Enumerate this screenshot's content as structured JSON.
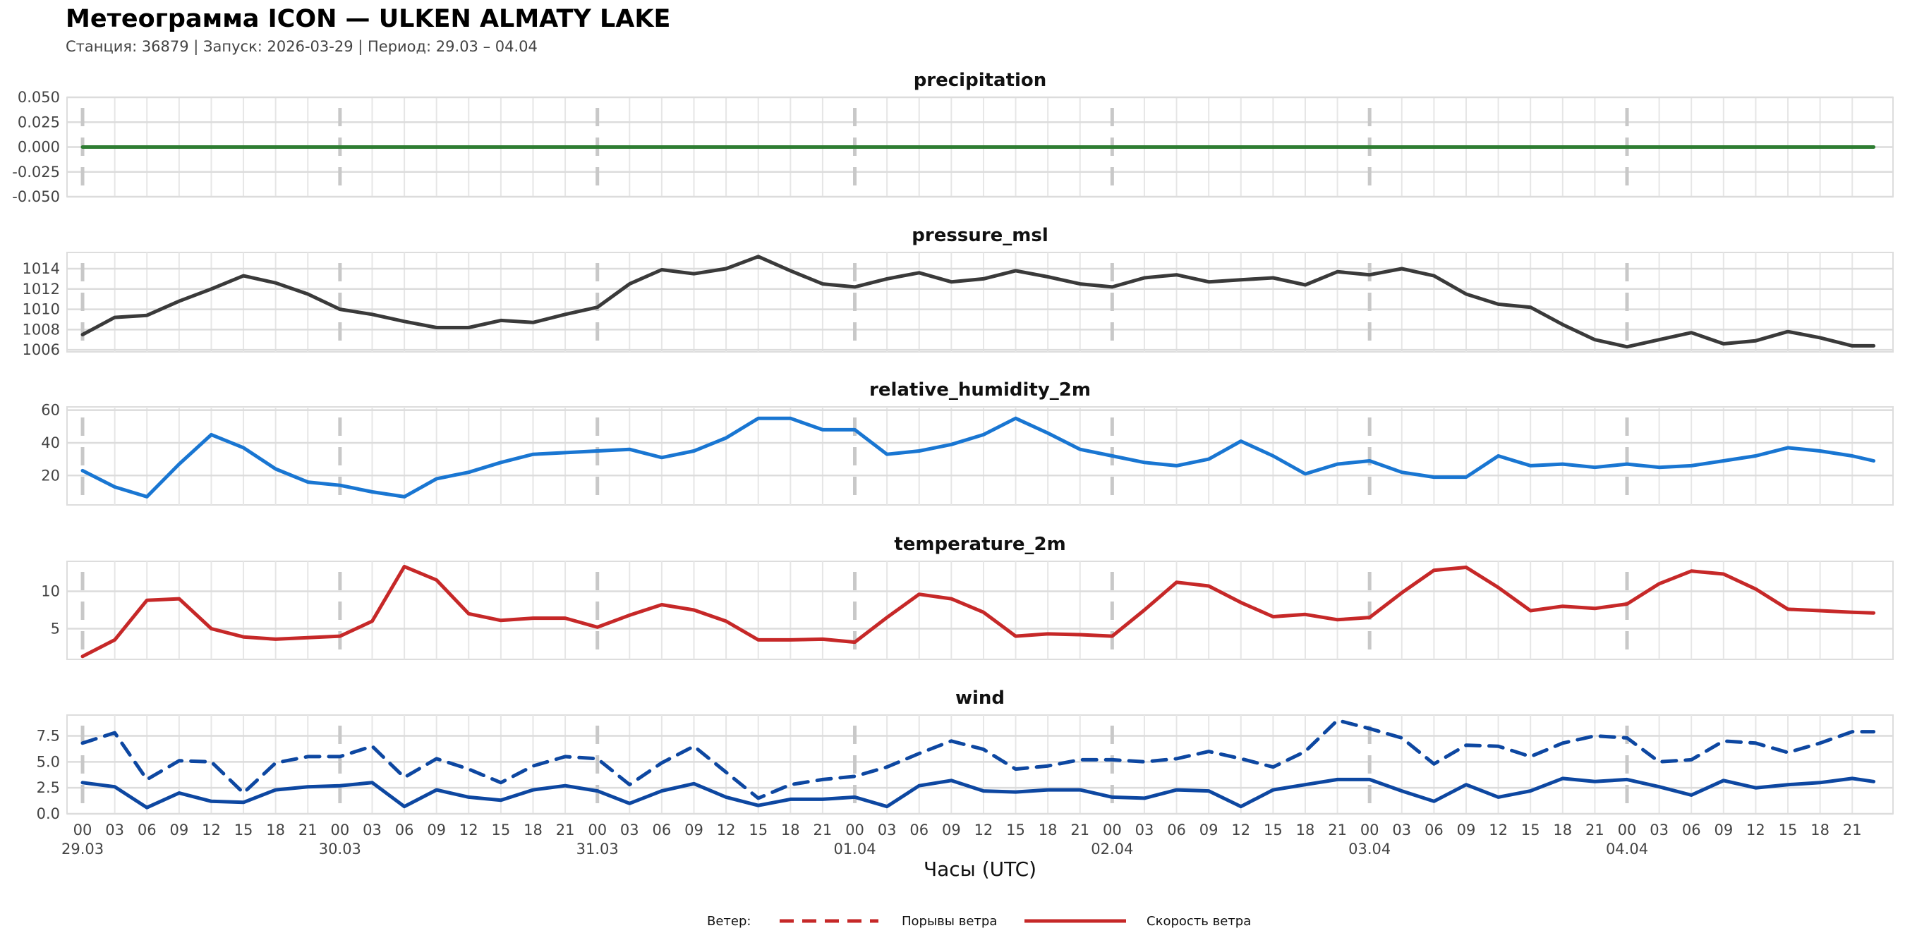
{
  "header": {
    "title": "Метеограмма ICON — ULKEN ALMATY LAKE",
    "subtitle": "Станция: 36879  | Запуск: 2026-03-29  | Период: 29.03 – 04.04"
  },
  "chart_data": {
    "type": "line",
    "xlabel": "Часы (UTC)",
    "x_hours": [
      0,
      3,
      6,
      9,
      12,
      15,
      18,
      21,
      24,
      27,
      30,
      33,
      36,
      39,
      42,
      45,
      48,
      51,
      54,
      57,
      60,
      63,
      66,
      69,
      72,
      75,
      78,
      81,
      84,
      87,
      90,
      93,
      96,
      99,
      102,
      105,
      108,
      111,
      114,
      117,
      120,
      123,
      126,
      129,
      132,
      135,
      138,
      141,
      144,
      147,
      150,
      153,
      156,
      159,
      162,
      165,
      167
    ],
    "xlim": [
      -1.45,
      168.8
    ],
    "hour_tick_labels": [
      "00",
      "03",
      "06",
      "09",
      "12",
      "15",
      "18",
      "21"
    ],
    "day_labels": [
      "29.03",
      "30.03",
      "31.03",
      "01.04",
      "02.04",
      "03.04",
      "04.04"
    ],
    "grid": true,
    "panels": [
      {
        "title": "precipitation",
        "color": "#2e7d32",
        "ylim": [
          -0.05,
          0.05
        ],
        "yticks": [
          "0.050",
          "0.025",
          "0.000",
          "-0.025",
          "-0.050"
        ],
        "ytick_values": [
          0.05,
          0.025,
          0,
          -0.025,
          -0.05
        ],
        "series": [
          {
            "name": "precipitation",
            "style": "solid",
            "values": [
              0,
              0,
              0,
              0,
              0,
              0,
              0,
              0,
              0,
              0,
              0,
              0,
              0,
              0,
              0,
              0,
              0,
              0,
              0,
              0,
              0,
              0,
              0,
              0,
              0,
              0,
              0,
              0,
              0,
              0,
              0,
              0,
              0,
              0,
              0,
              0,
              0,
              0,
              0,
              0,
              0,
              0,
              0,
              0,
              0,
              0,
              0,
              0,
              0,
              0,
              0,
              0,
              0,
              0,
              0,
              0,
              0
            ]
          }
        ]
      },
      {
        "title": "pressure_msl",
        "color": "#3a3a3a",
        "ylim": [
          1005.8,
          1015.6
        ],
        "yticks": [
          "1014",
          "1012",
          "1010",
          "1008",
          "1006"
        ],
        "ytick_values": [
          1014,
          1012,
          1010,
          1008,
          1006
        ],
        "series": [
          {
            "name": "pressure_msl",
            "style": "solid",
            "values": [
              1007.5,
              1009.2,
              1009.4,
              1010.8,
              1012.0,
              1013.3,
              1012.6,
              1011.5,
              1010.0,
              1009.5,
              1008.8,
              1008.2,
              1008.2,
              1008.9,
              1008.7,
              1009.5,
              1010.2,
              1012.5,
              1013.9,
              1013.5,
              1014.0,
              1015.2,
              1013.8,
              1012.5,
              1012.2,
              1013.0,
              1013.6,
              1012.7,
              1013.0,
              1013.8,
              1013.2,
              1012.5,
              1012.2,
              1013.1,
              1013.4,
              1012.7,
              1012.9,
              1013.1,
              1012.4,
              1013.7,
              1013.4,
              1014.0,
              1013.3,
              1011.5,
              1010.5,
              1010.2,
              1008.5,
              1007.0,
              1006.3,
              1007.0,
              1007.7,
              1006.6,
              1006.9,
              1007.8,
              1007.2,
              1006.4,
              1006.4
            ]
          }
        ]
      },
      {
        "title": "relative_humidity_2m",
        "color": "#1976d2",
        "ylim": [
          2,
          62
        ],
        "yticks": [
          "60",
          "40",
          "20"
        ],
        "ytick_values": [
          60,
          40,
          20
        ],
        "series": [
          {
            "name": "relative_humidity_2m",
            "style": "solid",
            "values": [
              23,
              13,
              7,
              27,
              45,
              37,
              24,
              16,
              14,
              10,
              7,
              18,
              22,
              28,
              33,
              34,
              35,
              36,
              31,
              35,
              43,
              55,
              55,
              48,
              48,
              33,
              35,
              39,
              45,
              55,
              46,
              36,
              32,
              28,
              26,
              30,
              41,
              32,
              21,
              27,
              29,
              22,
              19,
              19,
              32,
              26,
              27,
              25,
              27,
              25,
              26,
              29,
              32,
              37,
              35,
              32,
              29
            ]
          }
        ]
      },
      {
        "title": "temperature_2m",
        "color": "#c62828",
        "ylim": [
          0.9,
          14
        ],
        "yticks": [
          "10",
          "5"
        ],
        "ytick_values": [
          10,
          5
        ],
        "series": [
          {
            "name": "temperature_2m",
            "style": "solid",
            "values": [
              1.3,
              3.5,
              8.8,
              9.0,
              5.0,
              3.9,
              3.6,
              3.8,
              4.0,
              6.0,
              13.3,
              11.5,
              7.0,
              6.1,
              6.4,
              6.4,
              5.2,
              6.8,
              8.2,
              7.5,
              6.0,
              3.5,
              3.5,
              3.6,
              3.2,
              6.5,
              9.6,
              9.0,
              7.2,
              4.0,
              4.3,
              4.2,
              4.0,
              7.5,
              11.2,
              10.7,
              8.5,
              6.6,
              6.9,
              6.2,
              6.5,
              9.8,
              12.8,
              13.2,
              10.5,
              7.4,
              8.0,
              7.7,
              8.3,
              11.0,
              12.7,
              12.3,
              10.3,
              7.6,
              7.4,
              7.2,
              7.1
            ]
          }
        ]
      },
      {
        "title": "wind",
        "color": "#0d47a1",
        "ylim": [
          0,
          9.5
        ],
        "yticks": [
          "7.5",
          "5.0",
          "2.5",
          "0.0"
        ],
        "ytick_values": [
          7.5,
          5,
          2.5,
          0
        ],
        "series": [
          {
            "name": "Порывы ветра",
            "style": "dashed",
            "values": [
              6.8,
              7.8,
              3.3,
              5.1,
              5.0,
              2.0,
              4.9,
              5.5,
              5.5,
              6.5,
              3.5,
              5.3,
              4.3,
              3.0,
              4.6,
              5.5,
              5.3,
              2.8,
              4.9,
              6.5,
              4.0,
              1.5,
              2.8,
              3.3,
              3.6,
              4.5,
              5.8,
              7.0,
              6.2,
              4.3,
              4.6,
              5.2,
              5.2,
              5.0,
              5.3,
              6.0,
              5.3,
              4.5,
              6.0,
              9.0,
              8.2,
              7.3,
              4.8,
              6.6,
              6.5,
              5.5,
              6.8,
              7.5,
              7.3,
              5.0,
              5.2,
              7.0,
              6.8,
              5.9,
              6.8,
              7.9,
              7.9
            ]
          },
          {
            "name": "Скорость ветра",
            "style": "solid",
            "values": [
              3.0,
              2.6,
              0.6,
              2.0,
              1.2,
              1.1,
              2.3,
              2.6,
              2.7,
              3.0,
              0.7,
              2.3,
              1.6,
              1.3,
              2.3,
              2.7,
              2.2,
              1.0,
              2.2,
              2.9,
              1.6,
              0.8,
              1.4,
              1.4,
              1.6,
              0.7,
              2.7,
              3.2,
              2.2,
              2.1,
              2.3,
              2.3,
              1.6,
              1.5,
              2.3,
              2.2,
              0.7,
              2.3,
              2.8,
              3.3,
              3.3,
              2.2,
              1.2,
              2.8,
              1.6,
              2.2,
              3.4,
              3.1,
              3.3,
              2.6,
              1.8,
              3.2,
              2.5,
              2.8,
              3.0,
              3.4,
              3.1
            ]
          }
        ]
      }
    ],
    "legend": {
      "placement": "bottom-center",
      "title": "Ветер:",
      "color": "#c62828",
      "entries": [
        "Порывы ветра",
        "Скорость ветра"
      ]
    }
  }
}
